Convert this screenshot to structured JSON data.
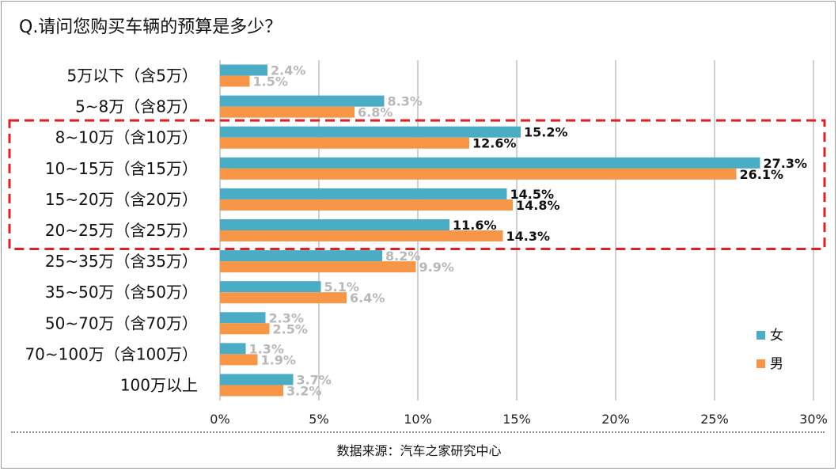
{
  "title": "Q.请问您购买车辆的预算是多少？",
  "source": "数据来源：汽车之家研究中心",
  "colors": {
    "female": "#4bacc6",
    "male": "#f79646",
    "highlight_box": "#e02020",
    "label_default": "#b8b8b8",
    "label_highlight": "#111111",
    "grid": "#a0a0a0"
  },
  "chart_data": {
    "type": "bar",
    "orientation": "horizontal",
    "categories": [
      "5万以下（含5万）",
      "5~8万（含8万）",
      "8~10万（含10万）",
      "10~15万（含15万）",
      "15~20万（含20万）",
      "20~25万（含25万）",
      "25~35万（含35万）",
      "35~50万（含50万）",
      "50~70万（含70万）",
      "70~100万（含100万）",
      "100万以上"
    ],
    "series": [
      {
        "name": "女",
        "color": "#4bacc6",
        "values": [
          2.4,
          8.3,
          15.2,
          27.3,
          14.5,
          11.6,
          8.2,
          5.1,
          2.3,
          1.3,
          3.7
        ],
        "labels": [
          "2.4%",
          "8.3%",
          "15.2%",
          "27.3%",
          "14.5%",
          "11.6%",
          "8.2%",
          "5.1%",
          "2.3%",
          "1.3%",
          "3.7%"
        ]
      },
      {
        "name": "男",
        "color": "#f79646",
        "values": [
          1.5,
          6.8,
          12.6,
          26.1,
          14.8,
          14.3,
          9.9,
          6.4,
          2.5,
          1.9,
          3.2
        ],
        "labels": [
          "1.5%",
          "6.8%",
          "12.6%",
          "26.1%",
          "14.8%",
          "14.3%",
          "9.9%",
          "6.4%",
          "2.5%",
          "1.9%",
          "3.2%"
        ]
      }
    ],
    "xlim": [
      0,
      30
    ],
    "xticks": [
      0,
      5,
      10,
      15,
      20,
      25,
      30
    ],
    "xtick_labels": [
      "0%",
      "5%",
      "10%",
      "15%",
      "20%",
      "25%",
      "30%"
    ],
    "highlighted_categories": [
      2,
      3,
      4,
      5
    ],
    "grid": "vertical",
    "legend": "right"
  }
}
